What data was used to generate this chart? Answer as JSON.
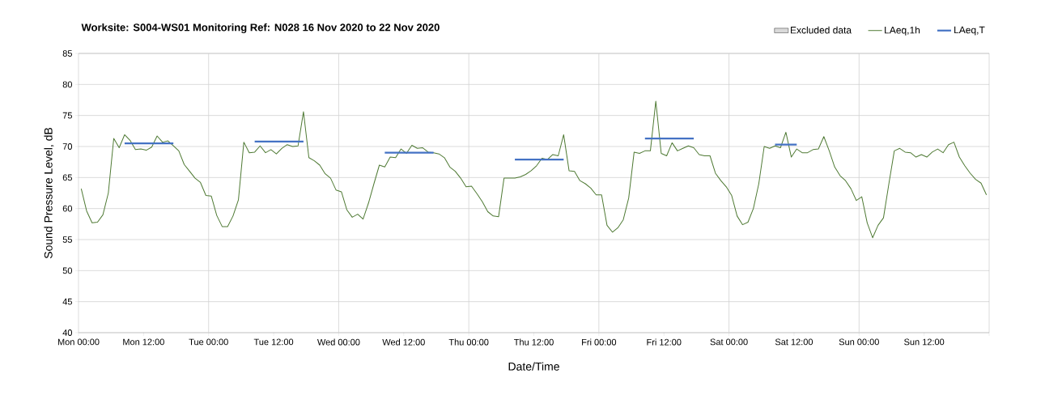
{
  "chart_data": {
    "type": "line",
    "title": "Worksite: S004-WS01   Monitoring Ref: N028   16 Nov 2020 to 22 Nov 2020",
    "xlabel": "Date/Time",
    "ylabel": "Sound Pressure Level, dB",
    "xlim": [
      "2020-11-16T00:00",
      "2020-11-23T00:00"
    ],
    "ylim": [
      40,
      85
    ],
    "yticks": [
      40,
      45,
      50,
      55,
      60,
      65,
      70,
      75,
      80,
      85
    ],
    "xticks": [
      {
        "value": "2020-11-16T00:00",
        "label": "Mon 00:00"
      },
      {
        "value": "2020-11-16T12:00",
        "label": "Mon 12:00"
      },
      {
        "value": "2020-11-17T00:00",
        "label": "Tue 00:00"
      },
      {
        "value": "2020-11-17T12:00",
        "label": "Tue 12:00"
      },
      {
        "value": "2020-11-18T00:00",
        "label": "Wed 00:00"
      },
      {
        "value": "2020-11-18T12:00",
        "label": "Wed 12:00"
      },
      {
        "value": "2020-11-19T00:00",
        "label": "Thu 00:00"
      },
      {
        "value": "2020-11-19T12:00",
        "label": "Thu 12:00"
      },
      {
        "value": "2020-11-20T00:00",
        "label": "Fri 00:00"
      },
      {
        "value": "2020-11-20T12:00",
        "label": "Fri 12:00"
      },
      {
        "value": "2020-11-21T00:00",
        "label": "Sat 00:00"
      },
      {
        "value": "2020-11-21T12:00",
        "label": "Sat 12:00"
      },
      {
        "value": "2020-11-22T00:00",
        "label": "Sun 00:00"
      },
      {
        "value": "2020-11-22T12:00",
        "label": "Sun 12:00"
      },
      {
        "value": "2020-11-23T00:00",
        "label": null
      }
    ],
    "grid": true,
    "legend": "top right",
    "marker": "none",
    "series": [
      {
        "name": "Excluded data",
        "type": "area",
        "color": "#d9d9d9"
      },
      {
        "name": "LAeq,1h",
        "color": "#4f7a34",
        "x": [
          "2020-11-16T00:30",
          "2020-11-16T01:30",
          "2020-11-16T02:30",
          "2020-11-16T03:30",
          "2020-11-16T04:30",
          "2020-11-16T05:30",
          "2020-11-16T06:30",
          "2020-11-16T07:30",
          "2020-11-16T08:30",
          "2020-11-16T09:30",
          "2020-11-16T10:30",
          "2020-11-16T11:30",
          "2020-11-16T12:30",
          "2020-11-16T13:30",
          "2020-11-16T14:30",
          "2020-11-16T15:30",
          "2020-11-16T16:30",
          "2020-11-16T17:30",
          "2020-11-16T18:30",
          "2020-11-16T19:30",
          "2020-11-16T20:30",
          "2020-11-16T21:30",
          "2020-11-16T22:30",
          "2020-11-16T23:30",
          "2020-11-17T00:30",
          "2020-11-17T01:30",
          "2020-11-17T02:30",
          "2020-11-17T03:30",
          "2020-11-17T04:30",
          "2020-11-17T05:30",
          "2020-11-17T06:30",
          "2020-11-17T07:30",
          "2020-11-17T08:30",
          "2020-11-17T09:30",
          "2020-11-17T10:30",
          "2020-11-17T11:30",
          "2020-11-17T12:30",
          "2020-11-17T13:30",
          "2020-11-17T14:30",
          "2020-11-17T15:30",
          "2020-11-17T16:30",
          "2020-11-17T17:30",
          "2020-11-17T18:30",
          "2020-11-17T19:30",
          "2020-11-17T20:30",
          "2020-11-17T21:30",
          "2020-11-17T22:30",
          "2020-11-17T23:30",
          "2020-11-18T00:30",
          "2020-11-18T01:30",
          "2020-11-18T02:30",
          "2020-11-18T03:30",
          "2020-11-18T04:30",
          "2020-11-18T05:30",
          "2020-11-18T06:30",
          "2020-11-18T07:30",
          "2020-11-18T08:30",
          "2020-11-18T09:30",
          "2020-11-18T10:30",
          "2020-11-18T11:30",
          "2020-11-18T12:30",
          "2020-11-18T13:30",
          "2020-11-18T14:30",
          "2020-11-18T15:30",
          "2020-11-18T16:30",
          "2020-11-18T17:30",
          "2020-11-18T18:30",
          "2020-11-18T19:30",
          "2020-11-18T20:30",
          "2020-11-18T21:30",
          "2020-11-18T22:30",
          "2020-11-18T23:30",
          "2020-11-19T00:30",
          "2020-11-19T01:30",
          "2020-11-19T02:30",
          "2020-11-19T03:30",
          "2020-11-19T04:30",
          "2020-11-19T05:30",
          "2020-11-19T06:30",
          "2020-11-19T07:30",
          "2020-11-19T08:30",
          "2020-11-19T09:30",
          "2020-11-19T10:30",
          "2020-11-19T11:30",
          "2020-11-19T12:30",
          "2020-11-19T13:30",
          "2020-11-19T14:30",
          "2020-11-19T15:30",
          "2020-11-19T16:30",
          "2020-11-19T17:30",
          "2020-11-19T18:30",
          "2020-11-19T19:30",
          "2020-11-19T20:30",
          "2020-11-19T21:30",
          "2020-11-19T22:30",
          "2020-11-19T23:30",
          "2020-11-20T00:30",
          "2020-11-20T01:30",
          "2020-11-20T02:30",
          "2020-11-20T03:30",
          "2020-11-20T04:30",
          "2020-11-20T05:30",
          "2020-11-20T06:30",
          "2020-11-20T07:30",
          "2020-11-20T08:30",
          "2020-11-20T09:30",
          "2020-11-20T10:30",
          "2020-11-20T11:30",
          "2020-11-20T12:30",
          "2020-11-20T13:30",
          "2020-11-20T14:30",
          "2020-11-20T15:30",
          "2020-11-20T16:30",
          "2020-11-20T17:30",
          "2020-11-20T18:30",
          "2020-11-20T19:30",
          "2020-11-20T20:30",
          "2020-11-20T21:30",
          "2020-11-20T22:30",
          "2020-11-20T23:30",
          "2020-11-21T00:30",
          "2020-11-21T01:30",
          "2020-11-21T02:30",
          "2020-11-21T03:30",
          "2020-11-21T04:30",
          "2020-11-21T05:30",
          "2020-11-21T06:30",
          "2020-11-21T07:30",
          "2020-11-21T08:30",
          "2020-11-21T09:30",
          "2020-11-21T10:30",
          "2020-11-21T11:30",
          "2020-11-21T12:30",
          "2020-11-21T13:30",
          "2020-11-21T14:30",
          "2020-11-21T15:30",
          "2020-11-21T16:30",
          "2020-11-21T17:30",
          "2020-11-21T18:30",
          "2020-11-21T19:30",
          "2020-11-21T20:30",
          "2020-11-21T21:30",
          "2020-11-21T22:30",
          "2020-11-21T23:30",
          "2020-11-22T00:30",
          "2020-11-22T01:30",
          "2020-11-22T02:30",
          "2020-11-22T03:30",
          "2020-11-22T04:30",
          "2020-11-22T05:30",
          "2020-11-22T06:30",
          "2020-11-22T07:30",
          "2020-11-22T08:30",
          "2020-11-22T09:30",
          "2020-11-22T10:30",
          "2020-11-22T11:30",
          "2020-11-22T12:30",
          "2020-11-22T13:30",
          "2020-11-22T14:30",
          "2020-11-22T15:30",
          "2020-11-22T16:30",
          "2020-11-22T17:30",
          "2020-11-22T18:30",
          "2020-11-22T19:30",
          "2020-11-22T20:30",
          "2020-11-22T21:30",
          "2020-11-22T22:30",
          "2020-11-22T23:30"
        ],
        "values": [
          63.2,
          59.6,
          57.7,
          57.8,
          59.0,
          62.5,
          71.3,
          69.8,
          71.9,
          71.0,
          69.5,
          69.6,
          69.4,
          69.9,
          71.7,
          70.7,
          70.9,
          70.1,
          69.3,
          67.1,
          66.0,
          64.9,
          64.2,
          62.1,
          62.0,
          58.9,
          57.1,
          57.1,
          58.8,
          61.4,
          70.7,
          69.0,
          69.1,
          70.1,
          69.0,
          69.5,
          68.8,
          69.7,
          70.3,
          70.0,
          70.1,
          75.6,
          68.2,
          67.7,
          67.0,
          65.6,
          64.9,
          63.0,
          62.7,
          59.8,
          58.6,
          59.1,
          58.3,
          60.9,
          64.0,
          67.0,
          66.7,
          68.3,
          68.2,
          69.6,
          68.9,
          70.2,
          69.7,
          69.8,
          69.1,
          69.0,
          68.8,
          68.2,
          66.7,
          66.0,
          64.9,
          63.5,
          63.6,
          62.4,
          61.1,
          59.5,
          58.8,
          58.7,
          64.9,
          64.9,
          64.9,
          65.1,
          65.5,
          66.1,
          66.9,
          68.1,
          67.9,
          68.7,
          68.5,
          71.9,
          66.1,
          66.0,
          64.5,
          64.0,
          63.3,
          62.2,
          62.2,
          57.3,
          56.2,
          56.9,
          58.2,
          61.7,
          69.1,
          68.9,
          69.3,
          69.3,
          77.3,
          68.9,
          68.5,
          70.6,
          69.3,
          69.7,
          70.1,
          69.8,
          68.7,
          68.5,
          68.5,
          65.7,
          64.5,
          63.5,
          62.1,
          58.8,
          57.4,
          57.8,
          60.0,
          64.0,
          70.0,
          69.7,
          70.1,
          69.8,
          72.3,
          68.3,
          69.6,
          69.0,
          69.0,
          69.5,
          69.6,
          71.6,
          69.3,
          66.7,
          65.3,
          64.5,
          63.2,
          61.3,
          61.9,
          57.7,
          55.3,
          57.3,
          58.5,
          64.0,
          69.3,
          69.7,
          69.1,
          69.0,
          68.3,
          68.7,
          68.3,
          69.1,
          69.6,
          69.0,
          70.3,
          70.7,
          68.3,
          66.9,
          65.7,
          64.7,
          64.1,
          62.2
        ]
      },
      {
        "name": "LAeq,T",
        "color": "#4472c4",
        "x": [
          "2020-11-16T08:30",
          "2020-11-16T17:30",
          null,
          "2020-11-17T08:30",
          "2020-11-17T17:30",
          null,
          "2020-11-18T08:30",
          "2020-11-18T17:30",
          null,
          "2020-11-19T08:30",
          "2020-11-19T17:30",
          null,
          "2020-11-20T08:30",
          "2020-11-20T17:30",
          null,
          "2020-11-21T08:30",
          "2020-11-21T12:30"
        ],
        "values": [
          70.5,
          70.5,
          null,
          70.8,
          70.8,
          null,
          69.0,
          69.0,
          null,
          67.9,
          67.9,
          null,
          71.3,
          71.3,
          null,
          70.3,
          70.3
        ]
      }
    ]
  }
}
